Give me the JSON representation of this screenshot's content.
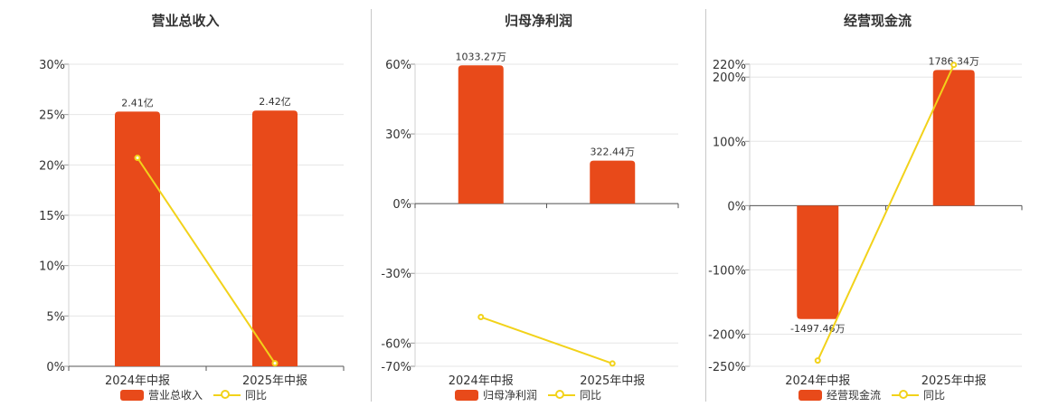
{
  "chart_data": [
    {
      "type": "bar",
      "title": "营业总收入",
      "categories": [
        "2024年中报",
        "2025年中报"
      ],
      "series": [
        {
          "name": "营业总收入",
          "type": "bar",
          "values": [
            25.3,
            25.4
          ],
          "labels": [
            "2.41亿",
            "2.42亿"
          ]
        },
        {
          "name": "同比",
          "type": "line",
          "values": [
            20.7,
            0.3
          ]
        }
      ],
      "ylim": [
        0,
        30
      ],
      "yticks": [
        "0%",
        "5%",
        "10%",
        "15%",
        "20%",
        "25%",
        "30%"
      ],
      "yticks_values": [
        0,
        5,
        10,
        15,
        20,
        25,
        30
      ],
      "grid": true,
      "legend": "bottom"
    },
    {
      "type": "bar",
      "title": "归母净利润",
      "categories": [
        "2024年中报",
        "2025年中报"
      ],
      "series": [
        {
          "name": "归母净利润",
          "type": "bar",
          "values": [
            59.5,
            18.5
          ],
          "labels": [
            "1033.27万",
            "322.44万"
          ]
        },
        {
          "name": "同比",
          "type": "line",
          "values": [
            -48.8,
            -68.8
          ]
        }
      ],
      "ylim": [
        -70,
        60
      ],
      "yticks": [
        "-70%",
        "-60%",
        "-30%",
        "0%",
        "30%",
        "60%"
      ],
      "yticks_values": [
        -70,
        -60,
        -30,
        0,
        30,
        60
      ],
      "grid": true,
      "legend": "bottom"
    },
    {
      "type": "bar",
      "title": "经营现金流",
      "categories": [
        "2024年中报",
        "2025年中报"
      ],
      "series": [
        {
          "name": "经营现金流",
          "type": "bar",
          "values": [
            -176.5,
            211
          ],
          "labels": [
            "-1497.46万",
            "1786.34万"
          ]
        },
        {
          "name": "同比",
          "type": "line",
          "values": [
            -241,
            219
          ]
        }
      ],
      "ylim": [
        -250,
        220
      ],
      "yticks": [
        "-250%",
        "-200%",
        "-100%",
        "0%",
        "100%",
        "200%",
        "220%"
      ],
      "yticks_values": [
        -250,
        -200,
        -100,
        0,
        100,
        200,
        220
      ],
      "grid": true,
      "legend": "bottom"
    }
  ],
  "colors": {
    "bar": "#e84a1a",
    "line": "#f2d21a"
  }
}
